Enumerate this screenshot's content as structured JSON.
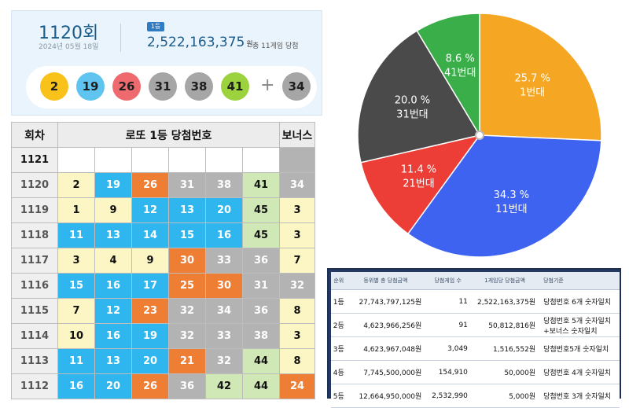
{
  "draw": {
    "round_label": "1120회",
    "date": "2024년 05월 18일",
    "rank_badge": "1등",
    "prize_amount": "2,522,163,375",
    "prize_unit": "원",
    "winners_note": "총 11게임 당첨",
    "numbers": [
      {
        "n": "2",
        "color": "#f8c21b"
      },
      {
        "n": "19",
        "color": "#5fc4ef"
      },
      {
        "n": "26",
        "color": "#ee6a6f"
      },
      {
        "n": "31",
        "color": "#a6a6a6"
      },
      {
        "n": "38",
        "color": "#a6a6a6"
      },
      {
        "n": "41",
        "color": "#9cd23e"
      }
    ],
    "plus": "+",
    "bonus": {
      "n": "34",
      "color": "#a6a6a6"
    }
  },
  "history": {
    "headers": {
      "round": "회차",
      "numbers": "로또 1등 당첨번호",
      "bonus": "보너스"
    },
    "rows": [
      {
        "round": "1121",
        "nums": [
          "",
          "",
          "",
          "",
          "",
          ""
        ],
        "bonus": ""
      },
      {
        "round": "1120",
        "nums": [
          "2",
          "19",
          "26",
          "31",
          "38",
          "41"
        ],
        "bonus": "34"
      },
      {
        "round": "1119",
        "nums": [
          "1",
          "9",
          "12",
          "13",
          "20",
          "45"
        ],
        "bonus": "3"
      },
      {
        "round": "1118",
        "nums": [
          "11",
          "13",
          "14",
          "15",
          "16",
          "45"
        ],
        "bonus": "3"
      },
      {
        "round": "1117",
        "nums": [
          "3",
          "4",
          "9",
          "30",
          "33",
          "36"
        ],
        "bonus": "7"
      },
      {
        "round": "1116",
        "nums": [
          "15",
          "16",
          "17",
          "25",
          "30",
          "31"
        ],
        "bonus": "32"
      },
      {
        "round": "1115",
        "nums": [
          "7",
          "12",
          "23",
          "32",
          "34",
          "36"
        ],
        "bonus": "8"
      },
      {
        "round": "1114",
        "nums": [
          "10",
          "16",
          "19",
          "32",
          "33",
          "38"
        ],
        "bonus": "3"
      },
      {
        "round": "1113",
        "nums": [
          "11",
          "13",
          "20",
          "21",
          "32",
          "44"
        ],
        "bonus": "8"
      },
      {
        "round": "1112",
        "nums": [
          "16",
          "20",
          "26",
          "36",
          "42",
          "44"
        ],
        "bonus": "24"
      }
    ]
  },
  "chart_data": {
    "type": "pie",
    "slices": [
      {
        "label": "1번대",
        "value": 25.7,
        "pct_label": "25.7 %",
        "color": "#f5a623"
      },
      {
        "label": "11번대",
        "value": 34.3,
        "pct_label": "34.3 %",
        "color": "#3d63f0"
      },
      {
        "label": "21번대",
        "value": 11.4,
        "pct_label": "11.4 %",
        "color": "#ec3d36"
      },
      {
        "label": "31번대",
        "value": 20.0,
        "pct_label": "20.0 %",
        "color": "#4a4a4a"
      },
      {
        "label": "41번대",
        "value": 8.6,
        "pct_label": "8.6 %",
        "color": "#3aae49"
      }
    ]
  },
  "prize_table": {
    "headers": [
      "순위",
      "등위별 총 당첨금액",
      "당첨게임 수",
      "1게임당 당첨금액",
      "당첨기준"
    ],
    "rows": [
      {
        "rank": "1등",
        "total": "27,743,797,125원",
        "count": "11",
        "each": "2,522,163,375원",
        "criteria": "당첨번호 6개 숫자일치"
      },
      {
        "rank": "2등",
        "total": "4,623,966,256원",
        "count": "91",
        "each": "50,812,816원",
        "criteria": "당첨번호 5개 숫자일치 +보너스 숫자일치"
      },
      {
        "rank": "3등",
        "total": "4,623,967,048원",
        "count": "3,049",
        "each": "1,516,552원",
        "criteria": "당첨번호5개 숫자일치"
      },
      {
        "rank": "4등",
        "total": "7,745,500,000원",
        "count": "154,910",
        "each": "50,000원",
        "criteria": "당첨번호 4개 숫자일치"
      },
      {
        "rank": "5등",
        "total": "12,664,950,000원",
        "count": "2,532,990",
        "each": "5,000원",
        "criteria": "당첨번호 3개 숫자일치"
      }
    ]
  }
}
